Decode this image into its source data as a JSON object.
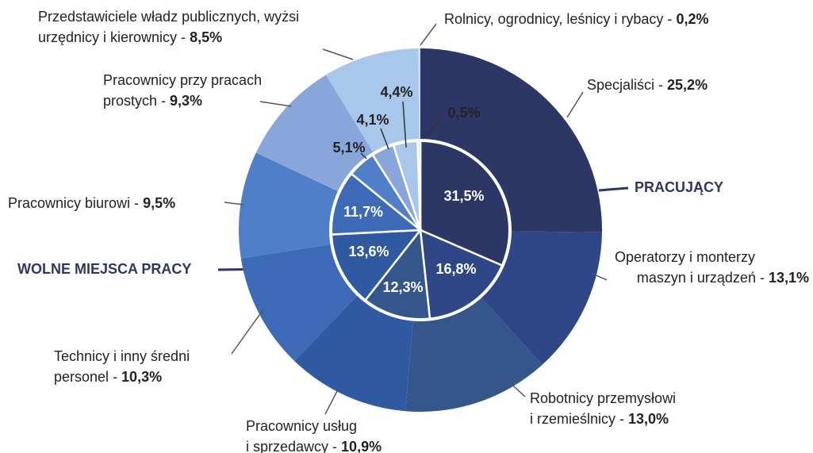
{
  "chart_data": {
    "type": "pie",
    "categories": [
      "Specjaliści",
      "Operatorzy i monterzy maszyn i urządzeń",
      "Robotnicy przemysłowi i rzemieślnicy",
      "Pracownicy usług i sprzedawcy",
      "Technicy i inny średni personel",
      "Pracownicy biurowi",
      "Pracownicy przy pracach prostych",
      "Przedstawiciele władz publicznych, wyżsi urzędnicy i kierownicy",
      "Rolnicy, ogrodnicy, leśnicy i rybacy"
    ],
    "colors": [
      "#2d3766",
      "#2f4687",
      "#35568a",
      "#2f5aa2",
      "#3c6ab6",
      "#4f7fc9",
      "#88a6d9",
      "#a9c7ea",
      "#c9dcf2"
    ],
    "series": [
      {
        "name": "PRACUJĄCY",
        "values": [
          25.2,
          13.1,
          13.0,
          10.9,
          10.3,
          9.5,
          9.3,
          8.5,
          0.2
        ],
        "value_labels": [
          "25,2%",
          "13,1%",
          "13,0%",
          "10,9%",
          "10,3%",
          "9,5%",
          "9,3%",
          "8,5%",
          "0,2%"
        ]
      },
      {
        "name": "WOLNE MIEJSCA PRACY",
        "values": [
          31.5,
          16.8,
          12.3,
          13.6,
          11.7,
          5.1,
          4.1,
          4.4,
          0.5
        ],
        "value_labels": [
          "31,5%",
          "16,8%",
          "12,3%",
          "13,6%",
          "11,7%",
          "5,1%",
          "4,1%",
          "4,4%",
          "0,5%"
        ]
      }
    ]
  }
}
